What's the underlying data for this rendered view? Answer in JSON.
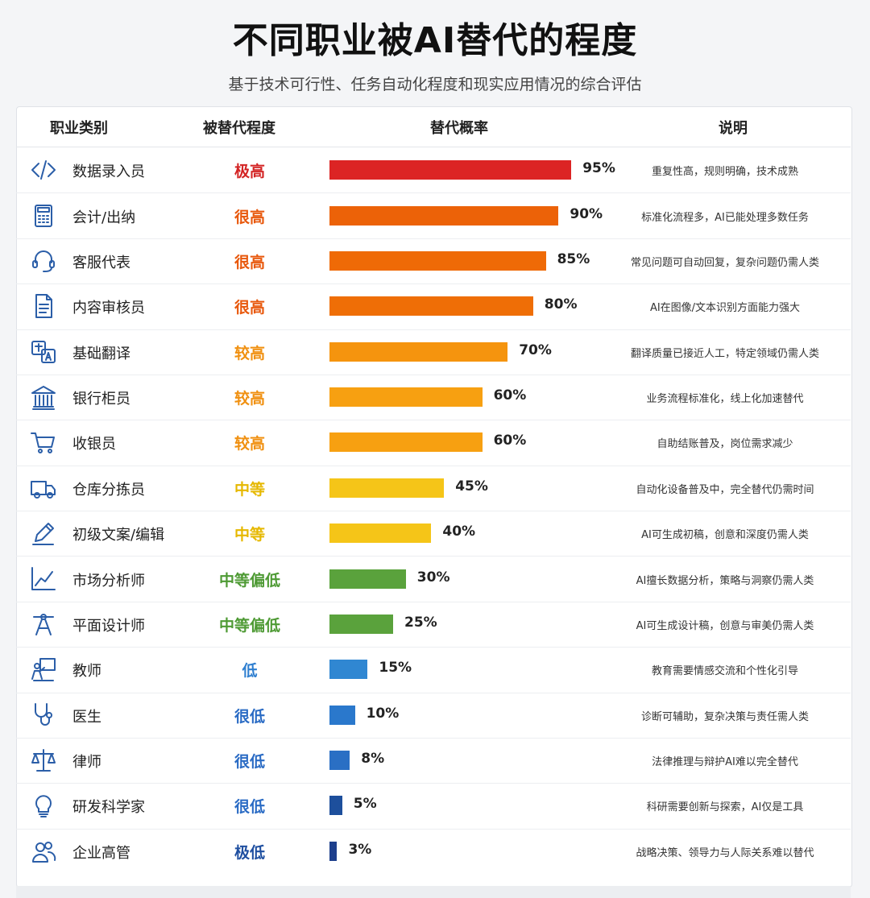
{
  "title": "不同职业被AI替代的程度",
  "subtitle": "基于技术可行性、任务自动化程度和现实应用情况的综合评估",
  "headers": {
    "occupation": "职业类别",
    "level": "被替代程度",
    "probability": "替代概率",
    "note": "说明"
  },
  "level_colors": {
    "极高": "#d32424",
    "很高": "#e8580c",
    "较高": "#f09010",
    "中等": "#e6b800",
    "中等偏低": "#4e9a34",
    "低": "#2f7fd0",
    "很低": "#2a6bc4",
    "极低": "#1f4fa0"
  },
  "chart_data": {
    "type": "bar",
    "orientation": "horizontal",
    "title": "不同职业被AI替代的程度",
    "subtitle": "基于技术可行性、任务自动化程度和现实应用情况的综合评估",
    "xlim": [
      0,
      100
    ],
    "rows": [
      {
        "icon": "code-icon",
        "name": "数据录入员",
        "level": "极高",
        "value": 95,
        "label": "95%",
        "note": "重复性高，规则明确，技术成熟",
        "color": "#dc2424"
      },
      {
        "icon": "calculator-icon",
        "name": "会计/出纳",
        "level": "很高",
        "value": 90,
        "label": "90%",
        "note": "标准化流程多，AI已能处理多数任务",
        "color": "#ec6208"
      },
      {
        "icon": "headset-icon",
        "name": "客服代表",
        "level": "很高",
        "value": 85,
        "label": "85%",
        "note": "常见问题可自动回复，复杂问题仍需人类",
        "color": "#ef6a06"
      },
      {
        "icon": "document-icon",
        "name": "内容审核员",
        "level": "很高",
        "value": 80,
        "label": "80%",
        "note": "AI在图像/文本识别方面能力强大",
        "color": "#ef6e06"
      },
      {
        "icon": "translate-icon",
        "name": "基础翻译",
        "level": "较高",
        "value": 70,
        "label": "70%",
        "note": "翻译质量已接近人工，特定领域仍需人类",
        "color": "#f5940e"
      },
      {
        "icon": "bank-icon",
        "name": "银行柜员",
        "level": "较高",
        "value": 60,
        "label": "60%",
        "note": "业务流程标准化，线上化加速替代",
        "color": "#f7a011"
      },
      {
        "icon": "cart-icon",
        "name": "收银员",
        "level": "较高",
        "value": 60,
        "label": "60%",
        "note": "自助结账普及，岗位需求减少",
        "color": "#f7a011"
      },
      {
        "icon": "truck-icon",
        "name": "仓库分拣员",
        "level": "中等",
        "value": 45,
        "label": "45%",
        "note": "自动化设备普及中，完全替代仍需时间",
        "color": "#f5c518"
      },
      {
        "icon": "pen-icon",
        "name": "初级文案/编辑",
        "level": "中等",
        "value": 40,
        "label": "40%",
        "note": "AI可生成初稿，创意和深度仍需人类",
        "color": "#f5c518"
      },
      {
        "icon": "trend-chart-icon",
        "name": "市场分析师",
        "level": "中等偏低",
        "value": 30,
        "label": "30%",
        "note": "AI擅长数据分析，策略与洞察仍需人类",
        "color": "#5aa23c"
      },
      {
        "icon": "design-tool-icon",
        "name": "平面设计师",
        "level": "中等偏低",
        "value": 25,
        "label": "25%",
        "note": "AI可生成设计稿，创意与审美仍需人类",
        "color": "#5aa23c"
      },
      {
        "icon": "teacher-icon",
        "name": "教师",
        "level": "低",
        "value": 15,
        "label": "15%",
        "note": "教育需要情感交流和个性化引导",
        "color": "#3087d2"
      },
      {
        "icon": "stethoscope-icon",
        "name": "医生",
        "level": "很低",
        "value": 10,
        "label": "10%",
        "note": "诊断可辅助，复杂决策与责任需人类",
        "color": "#2a78cc"
      },
      {
        "icon": "scales-icon",
        "name": "律师",
        "level": "很低",
        "value": 8,
        "label": "8%",
        "note": "法律推理与辩护AI难以完全替代",
        "color": "#2a6fc4"
      },
      {
        "icon": "lightbulb-icon",
        "name": "研发科学家",
        "level": "很低",
        "value": 5,
        "label": "5%",
        "note": "科研需要创新与探索，AI仅是工具",
        "color": "#1d4f9c"
      },
      {
        "icon": "people-icon",
        "name": "企业高管",
        "level": "极低",
        "value": 3,
        "label": "3%",
        "note": "战略决策、领导力与人际关系难以替代",
        "color": "#1d3f8c"
      }
    ]
  }
}
